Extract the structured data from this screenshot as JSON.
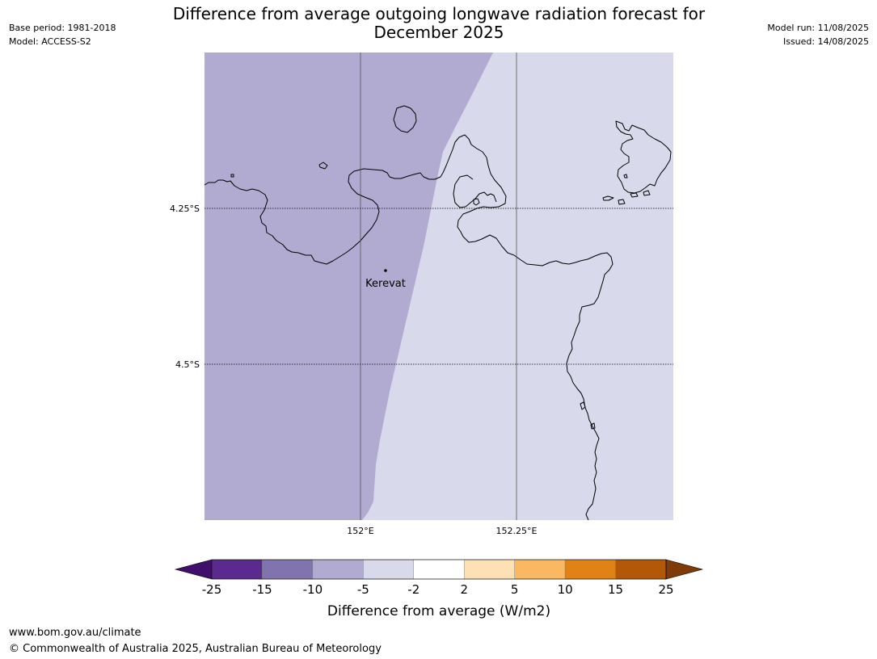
{
  "header": {
    "base_period": "Base period: 1981-2018",
    "model": "Model: ACCESS-S2",
    "title_line1": "Difference from average outgoing longwave radiation forecast for",
    "title_line2": "December 2025",
    "model_run": "Model run: 11/08/2025",
    "issued": "Issued: 14/08/2025"
  },
  "map": {
    "lat_labels": [
      "4.25°S",
      "4.5°S"
    ],
    "lon_labels": [
      "152°E",
      "152.25°E"
    ],
    "place": "Kerevat",
    "fill_west": "#b1abd2",
    "fill_east": "#d8d9ea",
    "fill_west_class": "-10 to -5",
    "fill_east_class": "-5 to -2"
  },
  "colorbar": {
    "label": "Difference from average (W/m2)",
    "ticks": [
      "-25",
      "-15",
      "-10",
      "-5",
      "-2",
      "2",
      "5",
      "10",
      "15",
      "25"
    ],
    "colors": [
      "#3f0f6b",
      "#5a2a8e",
      "#8173ad",
      "#b1abd2",
      "#d8d9ea",
      "#ffffff",
      "#fee0b5",
      "#fbb863",
      "#e08216",
      "#b35806",
      "#7f3b08"
    ]
  },
  "footer": {
    "url": "www.bom.gov.au/climate",
    "copyright": "© Commonwealth of Australia 2025, Australian Bureau of Meteorology"
  }
}
